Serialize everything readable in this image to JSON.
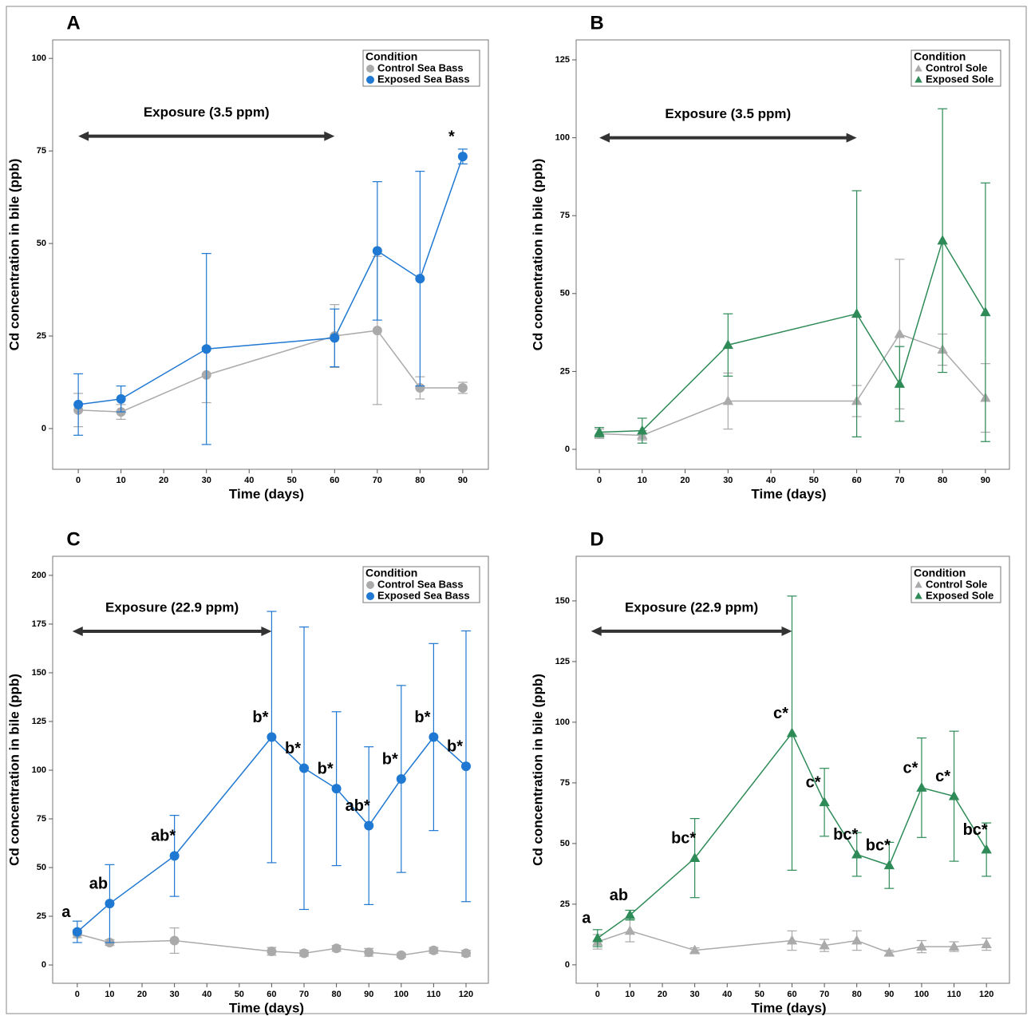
{
  "chart_data": [
    {
      "type": "line",
      "panel_label": "A",
      "xlabel": "Time (days)",
      "ylabel": "Cd concentration in bile (ppb)",
      "x": [
        0,
        10,
        30,
        60,
        70,
        80,
        90
      ],
      "xlim": [
        -6,
        96
      ],
      "xticks": [
        0,
        10,
        20,
        30,
        40,
        50,
        60,
        70,
        80,
        90
      ],
      "ylim": [
        -11,
        105
      ],
      "yticks": [
        0,
        25,
        50,
        75,
        100
      ],
      "legend_title": "Condition",
      "exposure": {
        "label": "Exposure (3.5 ppm)",
        "x": [
          0,
          60
        ],
        "y": 79
      },
      "series": [
        {
          "name": "Control Sea Bass",
          "color": "#aaaaaa",
          "marker": "circle",
          "values": [
            5,
            4.5,
            14.5,
            25,
            26.5,
            11,
            11
          ],
          "errors": [
            4.5,
            2,
            7.5,
            8.5,
            20,
            3,
            1.5
          ]
        },
        {
          "name": "Exposed Sea Bass",
          "color": "#1f78d1",
          "marker": "circle",
          "values": [
            6.5,
            8,
            21.5,
            24.5,
            48,
            40.5,
            73.5
          ],
          "errors": [
            8.3,
            3.5,
            25.8,
            7.8,
            18.7,
            29,
            2
          ],
          "point_labels": [
            null,
            null,
            null,
            null,
            null,
            null,
            "*"
          ]
        }
      ]
    },
    {
      "type": "line",
      "panel_label": "B",
      "xlabel": "Time (days)",
      "ylabel": "Cd concentration in bile (ppb)",
      "x": [
        0,
        10,
        30,
        60,
        70,
        80,
        90
      ],
      "xlim": [
        -5.4,
        95.6
      ],
      "xticks": [
        0,
        10,
        20,
        30,
        40,
        50,
        60,
        70,
        80,
        90
      ],
      "ylim": [
        -6.4,
        131.4
      ],
      "yticks": [
        0,
        25,
        50,
        75,
        100,
        125
      ],
      "legend_title": "Condition",
      "exposure": {
        "label": "Exposure (3.5 ppm)",
        "x": [
          0,
          60
        ],
        "y": 100
      },
      "series": [
        {
          "name": "Control Sole",
          "color": "#aaaaaa",
          "marker": "triangle",
          "values": [
            5,
            4.5,
            15.5,
            15.5,
            37,
            32,
            16.5
          ],
          "errors": [
            1.5,
            1.5,
            9,
            5,
            24,
            5,
            11
          ]
        },
        {
          "name": "Exposed Sole",
          "color": "#2e8b57",
          "marker": "triangle",
          "values": [
            5.5,
            6,
            33.5,
            43.5,
            21,
            67,
            44
          ],
          "errors": [
            1.5,
            4,
            10,
            39.5,
            12,
            42.3,
            41.5
          ]
        }
      ]
    },
    {
      "type": "line",
      "panel_label": "C",
      "xlabel": "Time (days)",
      "ylabel": "Cd concentration in bile (ppb)",
      "x": [
        0,
        10,
        30,
        60,
        70,
        80,
        90,
        100,
        110,
        120
      ],
      "xlim": [
        -7.6,
        126.9
      ],
      "xticks": [
        0,
        10,
        20,
        30,
        40,
        50,
        60,
        70,
        80,
        90,
        100,
        110,
        120
      ],
      "ylim": [
        -9.4,
        209.8
      ],
      "yticks": [
        0,
        25,
        50,
        75,
        100,
        125,
        150,
        175,
        200
      ],
      "legend_title": "Condition",
      "exposure": {
        "label": "Exposure (22.9 ppm)",
        "x": [
          -1.5,
          60
        ],
        "y": 171.3
      },
      "series": [
        {
          "name": "Control Sea Bass",
          "color": "#aaaaaa",
          "marker": "circle",
          "values": [
            16,
            11.5,
            12.5,
            7,
            6,
            8.5,
            6.5,
            5,
            7.5,
            6
          ],
          "errors": [
            2,
            1.5,
            6.5,
            2,
            1.5,
            1.5,
            2,
            1,
            1.5,
            1.5
          ]
        },
        {
          "name": "Exposed Sea Bass",
          "color": "#1f78d1",
          "marker": "circle",
          "values": [
            17,
            31.5,
            56,
            117,
            101,
            90.5,
            71.5,
            95.5,
            117,
            102
          ],
          "errors": [
            5.5,
            20,
            20.8,
            64.5,
            72.5,
            39.5,
            40.5,
            48,
            48,
            69.5
          ],
          "point_labels": [
            "a",
            "ab",
            "ab*",
            "b*",
            "b*",
            "b*",
            "ab*",
            "b*",
            "b*",
            "b*"
          ]
        }
      ]
    },
    {
      "type": "line",
      "panel_label": "D",
      "xlabel": "Time (days)",
      "ylabel": "Cd concentration in bile (ppb)",
      "x": [
        0,
        10,
        30,
        60,
        70,
        80,
        90,
        100,
        110,
        120
      ],
      "xlim": [
        -6.6,
        127.1
      ],
      "xticks": [
        0,
        10,
        20,
        30,
        40,
        50,
        60,
        70,
        80,
        90,
        100,
        110,
        120
      ],
      "ylim": [
        -7.6,
        168.4
      ],
      "yticks": [
        0,
        25,
        50,
        75,
        100,
        125,
        150
      ],
      "legend_title": "Condition",
      "exposure": {
        "label": "Exposure (22.9 ppm)",
        "x": [
          -2,
          60
        ],
        "y": 137.5
      },
      "series": [
        {
          "name": "Control Sole",
          "color": "#aaaaaa",
          "marker": "triangle",
          "values": [
            9.5,
            14,
            6,
            10,
            8,
            10,
            5,
            7.5,
            7.5,
            8.5
          ],
          "errors": [
            3,
            4.5,
            1,
            4,
            2.5,
            4,
            1,
            2.5,
            2,
            2.5
          ]
        },
        {
          "name": "Exposed Sole",
          "color": "#2e8b57",
          "marker": "triangle",
          "values": [
            11,
            20.5,
            44,
            95.5,
            67,
            45.5,
            41,
            73,
            69.5,
            47.5
          ],
          "errors": [
            3.5,
            2,
            16.3,
            56.5,
            14,
            9,
            9.5,
            20.5,
            26.8,
            11
          ],
          "point_labels": [
            "a",
            "ab",
            "bc*",
            "c*",
            "c*",
            "bc*",
            "bc*",
            "c*",
            "c*",
            "bc*"
          ]
        }
      ]
    }
  ]
}
